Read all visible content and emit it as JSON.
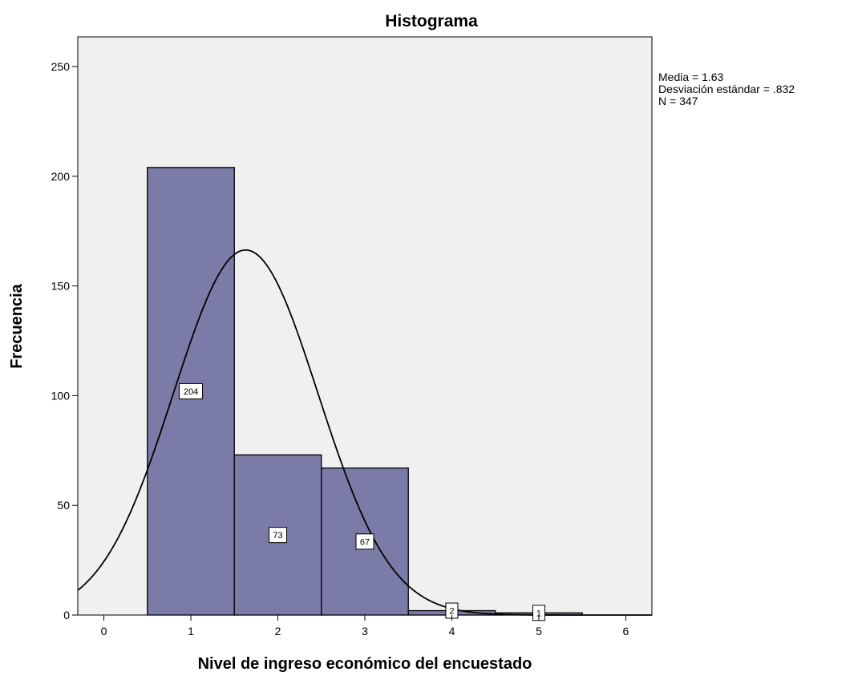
{
  "chart_data": {
    "type": "bar",
    "title": "Histograma",
    "xlabel": "Nivel de ingreso económico del encuestado",
    "ylabel": "Frecuencia",
    "x_ticks": [
      "0",
      "1",
      "2",
      "3",
      "4",
      "5",
      "6"
    ],
    "y_ticks": [
      "0",
      "50",
      "100",
      "150",
      "200",
      "250"
    ],
    "xlim": [
      -0.3,
      6.3
    ],
    "ylim": [
      0,
      250
    ],
    "bin_width": 1,
    "bins": [
      {
        "center": 1,
        "value": 204,
        "label": "204"
      },
      {
        "center": 2,
        "value": 73,
        "label": "73"
      },
      {
        "center": 3,
        "value": 67,
        "label": "67"
      },
      {
        "center": 4,
        "value": 2,
        "label": "2"
      },
      {
        "center": 5,
        "value": 1,
        "label": "1"
      }
    ],
    "normal_curve": {
      "mean": 1.63,
      "sd": 0.832,
      "n": 347
    },
    "stats": [
      "Media = 1.63",
      "Desviación estándar = .832",
      "N = 347"
    ],
    "grid": false,
    "colors": {
      "bar_fill": "#7b7ba7",
      "plot_background": "#f0f0f0",
      "stroke": "#000000"
    }
  }
}
